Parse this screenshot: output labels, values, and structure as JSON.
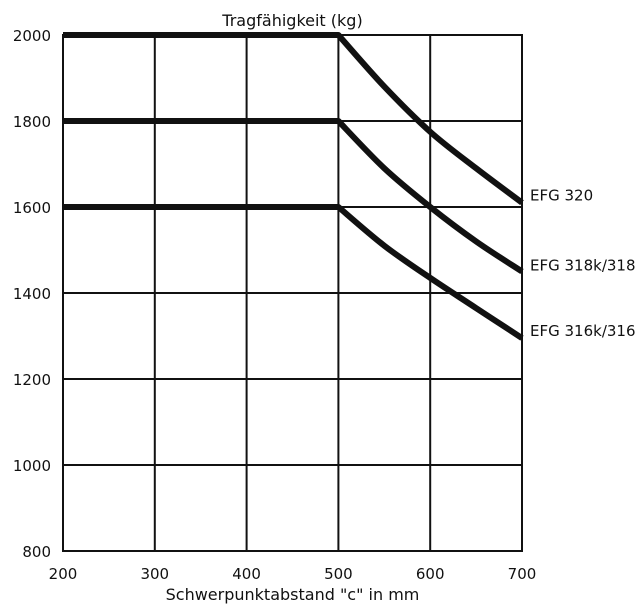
{
  "chart_data": {
    "type": "line",
    "title": "Tragfähigkeit (kg)",
    "xlabel": "Schwerpunktabstand \"c\" in mm",
    "ylabel": "",
    "xlim": [
      200,
      700
    ],
    "ylim": [
      800,
      2000
    ],
    "x_ticks": [
      200,
      300,
      400,
      500,
      600,
      700
    ],
    "y_ticks": [
      800,
      1000,
      1200,
      1400,
      1600,
      1800,
      2000
    ],
    "grid": true,
    "legend": "labels at right end of lines",
    "series": [
      {
        "name": "EFG 320",
        "x": [
          200,
          500,
          550,
          600,
          650,
          700
        ],
        "y": [
          2000,
          2000,
          1880,
          1775,
          1690,
          1610
        ]
      },
      {
        "name": "EFG 318k/318",
        "x": [
          200,
          500,
          550,
          600,
          650,
          700
        ],
        "y": [
          1800,
          1800,
          1690,
          1600,
          1520,
          1450
        ]
      },
      {
        "name": "EFG 316k/316",
        "x": [
          200,
          500,
          550,
          600,
          650,
          700
        ],
        "y": [
          1600,
          1600,
          1510,
          1435,
          1365,
          1295
        ]
      }
    ],
    "colors": {
      "line": "#111111",
      "grid": "#111111"
    }
  }
}
